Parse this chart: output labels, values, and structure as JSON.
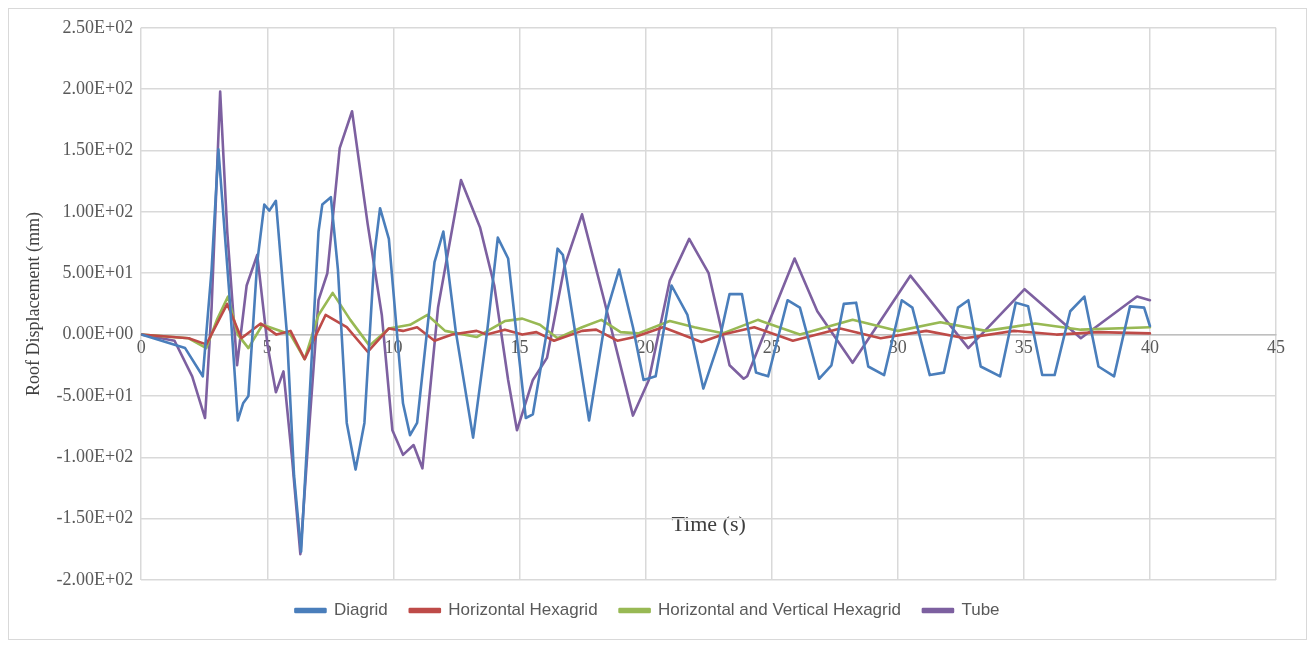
{
  "chart_data": {
    "type": "line",
    "xlabel": "Time (s)",
    "ylabel": "Roof Displacement (mm)",
    "xlim": [
      0,
      45
    ],
    "xticks": [
      0,
      5,
      10,
      15,
      20,
      25,
      30,
      35,
      40,
      45
    ],
    "ylim": [
      -200,
      250
    ],
    "yticks": [
      {
        "value": -200,
        "label": "-2.00E+02"
      },
      {
        "value": -150,
        "label": "-1.50E+02"
      },
      {
        "value": -100,
        "label": "-1.00E+02"
      },
      {
        "value": -50,
        "label": "-5.00E+01"
      },
      {
        "value": 0,
        "label": "0.00E+00"
      },
      {
        "value": 50,
        "label": "5.00E+01"
      },
      {
        "value": 100,
        "label": "1.00E+02"
      },
      {
        "value": 150,
        "label": "1.50E+02"
      },
      {
        "value": 200,
        "label": "2.00E+02"
      },
      {
        "value": 250,
        "label": "2.50E+02"
      }
    ],
    "grid": true,
    "legend": "bottom",
    "marker": "none",
    "line_style": "solid",
    "series": [
      {
        "name": "Diagrid",
        "color": "#4a7ebb",
        "x": [
          0,
          1.74,
          2.44,
          2.79,
          3.06,
          3.48,
          3.83,
          4.04,
          4.25,
          4.6,
          4.88,
          5.08,
          5.34,
          5.78,
          6.06,
          6.34,
          6.62,
          7.03,
          7.18,
          7.52,
          7.8,
          8.15,
          8.5,
          8.85,
          9.26,
          9.47,
          9.82,
          10.38,
          10.66,
          10.94,
          11.63,
          11.98,
          12.47,
          13.16,
          13.72,
          14.14,
          14.55,
          15.25,
          15.53,
          16.09,
          16.51,
          16.72,
          17.2,
          17.76,
          18.46,
          18.95,
          19.5,
          19.92,
          20.4,
          21.03,
          21.66,
          22.29,
          22.91,
          23.33,
          23.82,
          24.38,
          24.86,
          25.63,
          26.12,
          26.88,
          27.37,
          27.86,
          28.35,
          28.83,
          29.46,
          30.16,
          30.58,
          31.27,
          31.83,
          32.39,
          32.8,
          33.29,
          34.06,
          34.68,
          35.17,
          35.73,
          36.22,
          36.84,
          37.4,
          37.96,
          38.58,
          39.21,
          39.77,
          40
        ],
        "values": [
          0,
          -11,
          -34,
          53,
          151,
          37,
          -70,
          -56,
          -50,
          59,
          106,
          101,
          109,
          0,
          -115,
          -177,
          -72,
          84,
          106,
          112,
          53,
          -72,
          -110,
          -72,
          68,
          103,
          78,
          -56,
          -82,
          -72,
          59,
          84,
          3,
          -84,
          3,
          79,
          62,
          -68,
          -65,
          3,
          70,
          65,
          3,
          -70,
          19,
          53,
          6,
          -37,
          -34,
          40,
          16,
          -44,
          -6,
          33,
          33,
          -31,
          -34,
          28,
          22,
          -36,
          -25,
          25,
          26,
          -26,
          -33,
          28,
          22,
          -33,
          -31,
          22,
          28,
          -26,
          -34,
          26,
          23,
          -33,
          -33,
          19,
          31,
          -26,
          -34,
          23,
          22,
          7
        ]
      },
      {
        "name": "Horizontal Hexagrid",
        "color": "#be4b48",
        "x": [
          0,
          1.88,
          2.58,
          3.41,
          3.97,
          4.74,
          5.36,
          5.92,
          6.48,
          7.31,
          8.15,
          8.98,
          9.82,
          10.38,
          10.94,
          11.63,
          12.33,
          13.3,
          13.7,
          14.42,
          15.11,
          15.67,
          16.37,
          17.48,
          18.04,
          18.88,
          19.57,
          20.69,
          22.22,
          23.06,
          24.31,
          25.84,
          27.72,
          29.32,
          31.13,
          32.67,
          34.61,
          36.29,
          37.96,
          40
        ],
        "values": [
          0,
          -3,
          -8,
          25,
          -3,
          9,
          0,
          3,
          -20,
          16,
          6,
          -14,
          5,
          3,
          6,
          -5,
          0,
          3,
          0,
          4,
          0,
          2,
          -5,
          3,
          4,
          -5,
          -2,
          6,
          -6,
          0,
          6,
          -5,
          5,
          -3,
          3,
          -3,
          3,
          0,
          2,
          1
        ]
      },
      {
        "name": "Horizontal and Vertical Hexagrid",
        "color": "#98b954",
        "x": [
          0,
          1.88,
          2.58,
          3.0,
          3.44,
          3.83,
          4.25,
          4.81,
          5.92,
          6.48,
          7.03,
          7.59,
          8.29,
          9.05,
          9.82,
          10.66,
          11.35,
          12.05,
          13.3,
          14.42,
          15.11,
          15.81,
          16.51,
          17.48,
          18.25,
          19.01,
          19.71,
          20.96,
          21.94,
          23.06,
          24.45,
          26.12,
          28.21,
          30.02,
          31.69,
          33.5,
          35.45,
          37.26,
          40
        ],
        "values": [
          0,
          -3,
          -11,
          12,
          31,
          0,
          -11,
          8,
          0,
          -20,
          16,
          34,
          12,
          -9,
          5,
          8,
          16,
          3,
          -2,
          11,
          13,
          8,
          -3,
          6,
          12,
          2,
          1,
          11,
          6,
          1,
          12,
          0,
          12,
          3,
          10,
          3,
          9,
          4,
          6
        ]
      },
      {
        "name": "Tube",
        "color": "#7d60a0",
        "x": [
          0,
          1.32,
          2.02,
          2.53,
          2.79,
          3.13,
          3.41,
          3.8,
          4.18,
          4.6,
          5.01,
          5.34,
          5.64,
          5.99,
          6.31,
          6.62,
          7.03,
          7.38,
          7.87,
          8.36,
          8.98,
          9.54,
          9.96,
          10.38,
          10.8,
          11.15,
          11.77,
          12.68,
          13.44,
          14,
          14.55,
          14.9,
          15.53,
          16.09,
          16.79,
          17.48,
          18.32,
          19.5,
          20.13,
          20.96,
          21.73,
          22.5,
          23.33,
          23.89,
          24.03,
          25.91,
          26.81,
          28.21,
          30.5,
          32.8,
          35.03,
          37.26,
          39.49,
          40
        ],
        "values": [
          0,
          -5,
          -34,
          -68,
          22,
          198,
          84,
          -25,
          40,
          65,
          -9,
          -47,
          -30,
          -103,
          -179,
          -87,
          28,
          50,
          152,
          182,
          90,
          16,
          -78,
          -98,
          -90,
          -109,
          22,
          126,
          87,
          40,
          -37,
          -78,
          -37,
          -19,
          56,
          98,
          31,
          -66,
          -37,
          44,
          78,
          50,
          -25,
          -36,
          -34,
          62,
          19,
          -23,
          48,
          -11,
          37,
          -3,
          31,
          28
        ]
      }
    ]
  }
}
